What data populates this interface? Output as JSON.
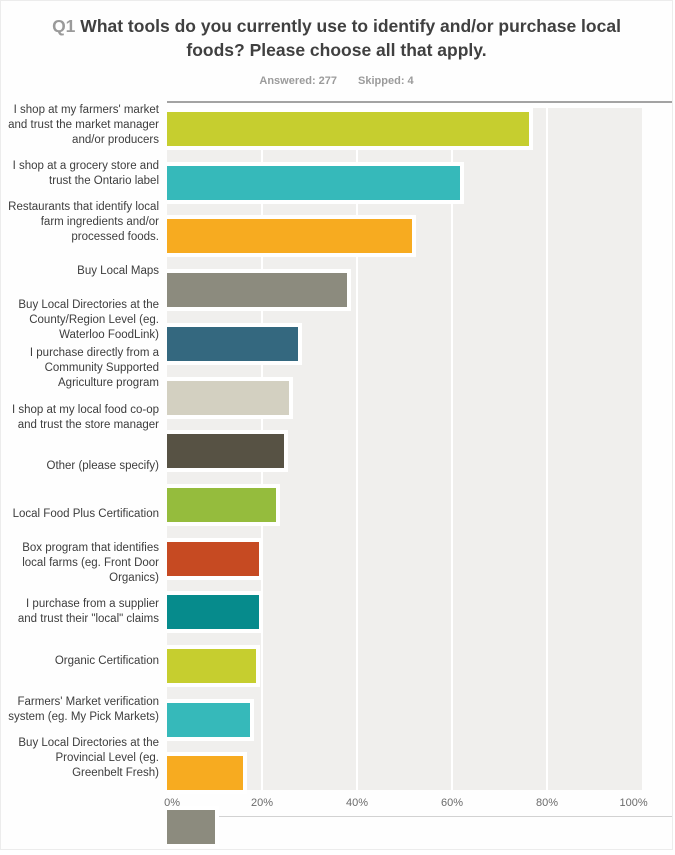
{
  "header": {
    "question_number": "Q1",
    "title": "What tools do you currently use to identify and/or purchase local foods? Please choose all that apply.",
    "answered_label": "Answered:",
    "answered_value": "277",
    "skipped_label": "Skipped:",
    "skipped_value": "4"
  },
  "chart_data": {
    "type": "bar",
    "orientation": "horizontal",
    "title": "Q1 What tools do you currently use to identify and/or purchase local foods? Please choose all that apply.",
    "answered": 277,
    "skipped": 4,
    "xlim": [
      0,
      100
    ],
    "grid": true,
    "legend": false,
    "plot_background": "#f0efed",
    "x_ticks": [
      {
        "label": "0%",
        "value": 0
      },
      {
        "label": "20%",
        "value": 20
      },
      {
        "label": "40%",
        "value": 40
      },
      {
        "label": "60%",
        "value": 60
      },
      {
        "label": "80%",
        "value": 80
      },
      {
        "label": "100%",
        "value": 100
      }
    ],
    "bars": [
      {
        "label": "I shop at my farmers' market and trust the market manager and/or producers",
        "value": 76.2,
        "color": "#c6ce2f"
      },
      {
        "label": "I shop at a grocery store and trust the Ontario label",
        "value": 61.7,
        "color": "#36b9ba"
      },
      {
        "label": "Restaurants that identify local farm ingredients and/or processed foods.",
        "value": 51.6,
        "color": "#f7ab20"
      },
      {
        "label": "Buy Local Maps",
        "value": 37.9,
        "color": "#8c8b7e"
      },
      {
        "label": "Buy Local Directories at the County/Region Level (eg. Waterloo FoodLink)",
        "value": 27.5,
        "color": "#34687f"
      },
      {
        "label": "I purchase directly from a Community Supported Agriculture program",
        "value": 25.7,
        "color": "#d3d0c1"
      },
      {
        "label": "I shop at my local food co-op and trust the store manager",
        "value": 24.6,
        "color": "#575244"
      },
      {
        "label": "Other (please specify)",
        "value": 22.9,
        "color": "#95bc3d"
      },
      {
        "label": "Local Food Plus Certification",
        "value": 19.3,
        "color": "#c64a22"
      },
      {
        "label": "Box program that identifies local farms (eg. Front Door Organics)",
        "value": 19.3,
        "color": "#068b8c"
      },
      {
        "label": "I purchase from a supplier and trust their \"local\" claims",
        "value": 18.7,
        "color": "#c6ce2f"
      },
      {
        "label": "Organic Certification",
        "value": 17.5,
        "color": "#36b9ba"
      },
      {
        "label": "Farmers' Market verification system (eg. My Pick Markets)",
        "value": 16.1,
        "color": "#f7ab20"
      },
      {
        "label": "Buy Local Directories at the Provincial Level (eg. Greenbelt Fresh)",
        "value": 10.0,
        "color": "#8c8b7e"
      }
    ]
  }
}
